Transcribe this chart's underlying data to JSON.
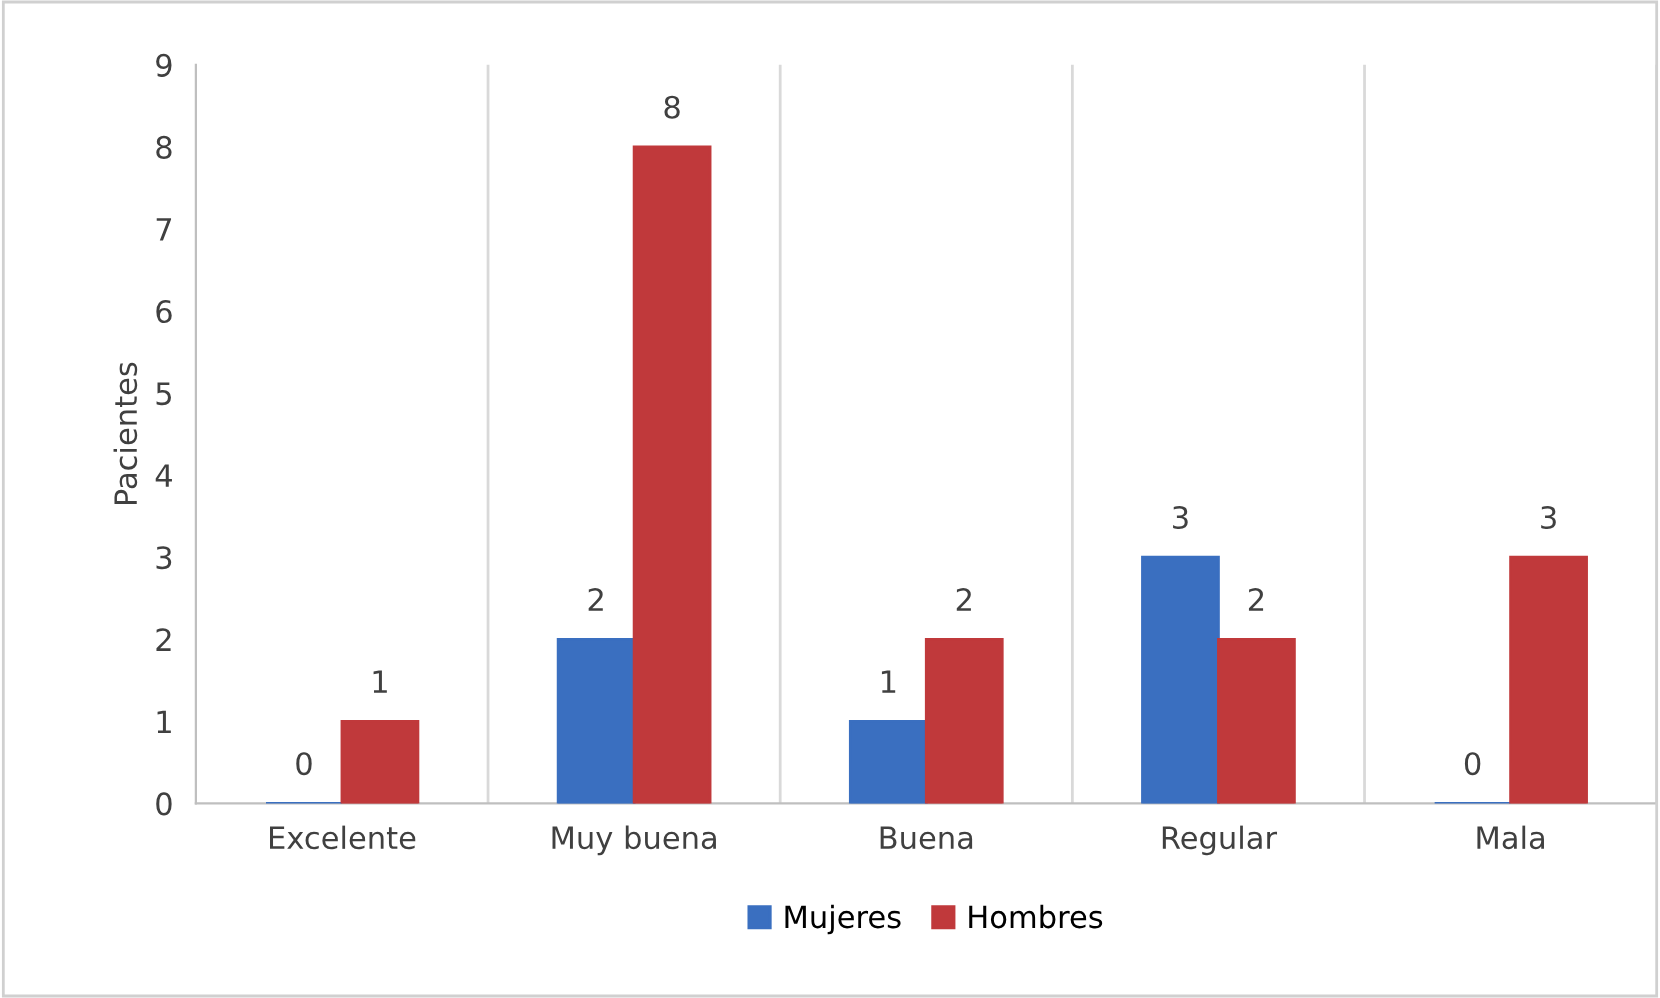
{
  "chart_data": {
    "type": "bar",
    "ylabel": "Pacientes",
    "categories": [
      "Excelente",
      "Muy buena",
      "Buena",
      "Regular",
      "Mala"
    ],
    "series": [
      {
        "name": "Mujeres",
        "color": "#3a6fc0",
        "values": [
          0,
          2,
          1,
          3,
          0
        ]
      },
      {
        "name": "Hombres",
        "color": "#c0393b",
        "values": [
          1,
          8,
          2,
          2,
          3
        ]
      }
    ],
    "ylim": [
      0,
      9
    ],
    "yticks": [
      0,
      1,
      2,
      3,
      4,
      5,
      6,
      7,
      8,
      9
    ],
    "grid": "x",
    "legend": "bottom",
    "data_labels": true
  }
}
